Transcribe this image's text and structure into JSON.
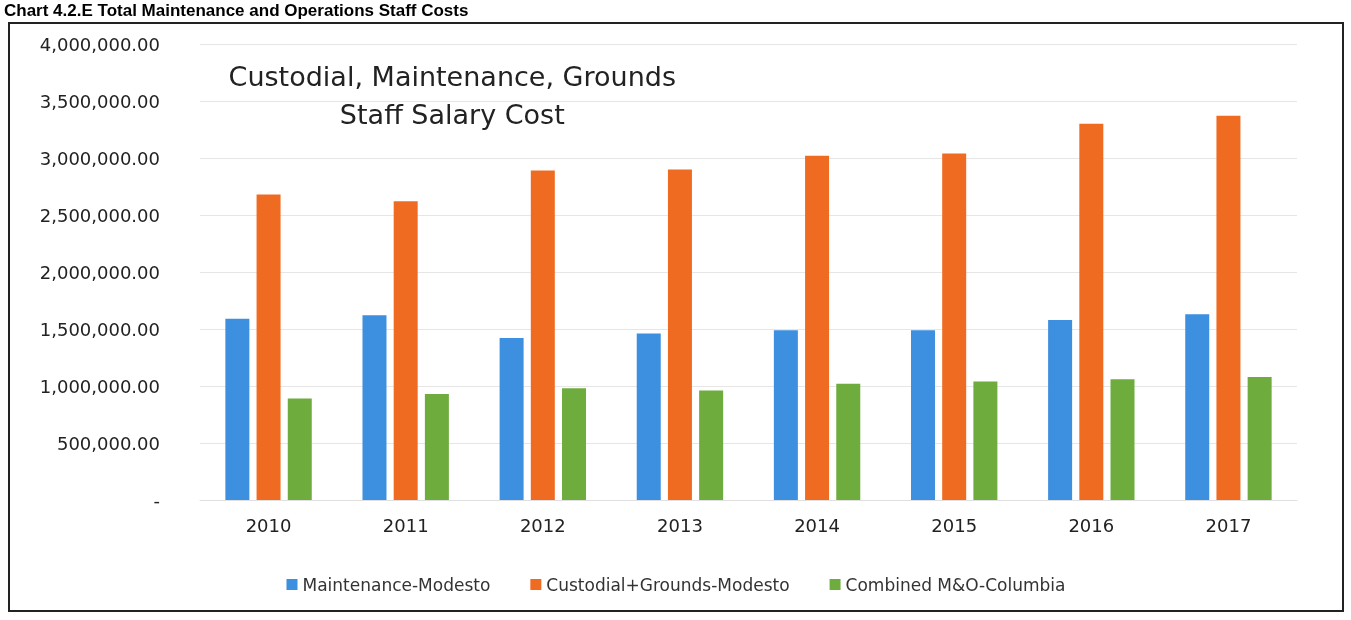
{
  "chart_data": {
    "type": "bar",
    "title": "Chart 4.2.E Total Maintenance and Operations Staff Costs",
    "subtitle": "Custodial, Maintenance, Grounds\nStaff Salary Cost",
    "categories": [
      "2010",
      "2011",
      "2012",
      "2013",
      "2014",
      "2015",
      "2016",
      "2017"
    ],
    "series": [
      {
        "name": "Maintenance-Modesto",
        "color": "#3d8fe0",
        "values": [
          1590000,
          1620000,
          1420000,
          1460000,
          1490000,
          1490000,
          1580000,
          1630000
        ]
      },
      {
        "name": "Custodial+Grounds-Modesto",
        "color": "#f06b22",
        "values": [
          2680000,
          2620000,
          2890000,
          2900000,
          3020000,
          3040000,
          3300000,
          3370000
        ]
      },
      {
        "name": "Combined M&O-Columbia",
        "color": "#6fac3e",
        "values": [
          890000,
          930000,
          980000,
          960000,
          1020000,
          1040000,
          1060000,
          1080000
        ]
      }
    ],
    "ylim": [
      0,
      4000000
    ],
    "yticks": [
      {
        "value": 0,
        "label": "-"
      },
      {
        "value": 500000,
        "label": "500,000.00"
      },
      {
        "value": 1000000,
        "label": "1,000,000.00"
      },
      {
        "value": 1500000,
        "label": "1,500,000.00"
      },
      {
        "value": 2000000,
        "label": "2,000,000.00"
      },
      {
        "value": 2500000,
        "label": "2,500,000.00"
      },
      {
        "value": 3000000,
        "label": "3,000,000.00"
      },
      {
        "value": 3500000,
        "label": "3,500,000.00"
      },
      {
        "value": 4000000,
        "label": "4,000,000.00"
      }
    ],
    "grid": "y",
    "legend": "bottom"
  }
}
